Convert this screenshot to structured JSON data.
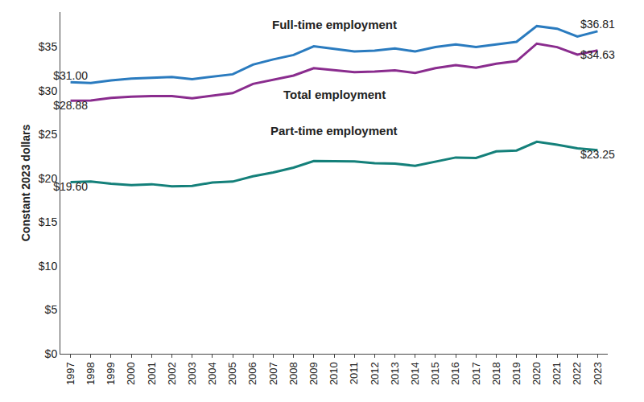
{
  "chart_data": {
    "type": "line",
    "y_label": "Constant 2023 dollars",
    "categories": [
      "1997",
      "1998",
      "1999",
      "2000",
      "2001",
      "2002",
      "2003",
      "2004",
      "2005",
      "2006",
      "2007",
      "2008",
      "2009",
      "2010",
      "2011",
      "2012",
      "2013",
      "2014",
      "2015",
      "2016",
      "2017",
      "2018",
      "2019",
      "2020",
      "2021",
      "2022",
      "2023"
    ],
    "series": [
      {
        "name": "Full-time employment",
        "color": "#2a7bbf",
        "values": [
          31.0,
          30.9,
          31.2,
          31.4,
          31.5,
          31.6,
          31.35,
          31.6,
          31.9,
          33.0,
          33.6,
          34.1,
          35.1,
          34.8,
          34.5,
          34.6,
          34.85,
          34.5,
          35.0,
          35.3,
          35.0,
          35.3,
          35.6,
          37.4,
          37.1,
          36.2,
          36.81
        ],
        "value_labels": [
          "$31.00",
          null,
          null,
          null,
          null,
          null,
          null,
          null,
          null,
          null,
          null,
          null,
          null,
          null,
          null,
          null,
          null,
          null,
          null,
          null,
          null,
          null,
          null,
          null,
          null,
          null,
          "$36.81"
        ]
      },
      {
        "name": "Total employment",
        "color": "#8a2c8e",
        "values": [
          28.88,
          28.9,
          29.2,
          29.35,
          29.4,
          29.4,
          29.15,
          29.45,
          29.75,
          30.8,
          31.3,
          31.75,
          32.6,
          32.35,
          32.15,
          32.2,
          32.35,
          32.05,
          32.6,
          32.95,
          32.65,
          33.1,
          33.4,
          35.4,
          35.0,
          34.15,
          34.63
        ],
        "value_labels": [
          "$28.88",
          null,
          null,
          null,
          null,
          null,
          null,
          null,
          null,
          null,
          null,
          null,
          null,
          null,
          null,
          null,
          null,
          null,
          null,
          null,
          null,
          null,
          null,
          null,
          null,
          null,
          "$34.63"
        ]
      },
      {
        "name": "Part-time employment",
        "color": "#14807a",
        "values": [
          19.6,
          19.65,
          19.4,
          19.25,
          19.35,
          19.1,
          19.15,
          19.55,
          19.65,
          20.25,
          20.7,
          21.25,
          22.0,
          21.95,
          21.95,
          21.75,
          21.7,
          21.45,
          21.9,
          22.4,
          22.35,
          23.1,
          23.2,
          24.2,
          23.85,
          23.45,
          23.25
        ],
        "value_labels": [
          "$19.60",
          null,
          null,
          null,
          null,
          null,
          null,
          null,
          null,
          null,
          null,
          null,
          null,
          null,
          null,
          null,
          null,
          null,
          null,
          null,
          null,
          null,
          null,
          null,
          null,
          null,
          "$23.25"
        ]
      }
    ],
    "ylim": [
      0,
      39
    ],
    "yticks": [
      {
        "value": 0,
        "label": "$0"
      },
      {
        "value": 5,
        "label": "$5"
      },
      {
        "value": 10,
        "label": "$10"
      },
      {
        "value": 15,
        "label": "$15"
      },
      {
        "value": 20,
        "label": "$20"
      },
      {
        "value": 25,
        "label": "$25"
      },
      {
        "value": 30,
        "label": "$30"
      },
      {
        "value": 35,
        "label": "$35"
      }
    ],
    "grid": false
  }
}
